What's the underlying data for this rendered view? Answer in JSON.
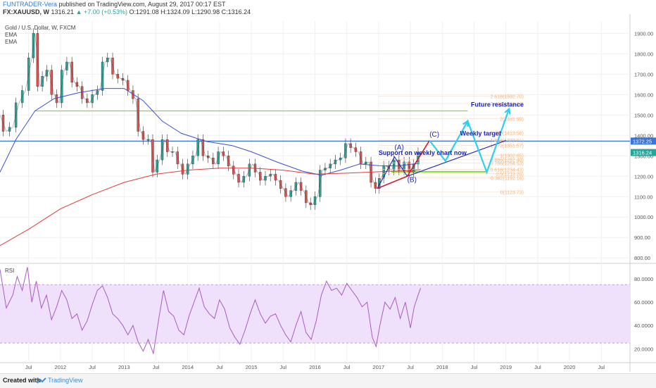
{
  "header": {
    "author": "FUNTRADER-Vera",
    "published": "published on TradingView.com, August 29, 2017 00:17 EST",
    "symbol": "FX:XAUUSD, W",
    "last": "1316.21",
    "change": "▲ +7.00 (+0.53%)",
    "ohlc": "O:1291.08 H:1324.09 L:1290.98 C:1316.24"
  },
  "indicators": {
    "title": "Gold / U.S. Dollar, W, FXCM",
    "ema1": "EMA",
    "ema2": "EMA",
    "rsi": "RSI"
  },
  "footer": {
    "created_with": "Created with",
    "brand": "TradingView"
  },
  "colors": {
    "up": "#26a69a",
    "down": "#e0524f",
    "ema_fast": "#3f4fd0",
    "ema_slow": "#e03c3c",
    "support": "#7fdc3c",
    "resistance": "#3a73d9",
    "arrows": "#2fd0ec",
    "rsi_line": "#a85bbf",
    "rsi_band": "#efe1fb",
    "fib_text": "#f2b27a"
  },
  "chart_data": [
    {
      "type": "line",
      "title": "Gold / U.S. Dollar, W, FXCM",
      "y_axis": {
        "ticks": [
          800,
          900,
          1000,
          1100,
          1200,
          1300,
          1400,
          1500,
          1600,
          1700,
          1800,
          1900
        ],
        "tick_labels": [
          "800.00",
          "900.00",
          "1000.00",
          "1100.00",
          "1200.00",
          "1300.00",
          "1400.00",
          "1500.00",
          "1600.00",
          "1700.00",
          "1800.00",
          "1900.00"
        ],
        "range": [
          780,
          1960
        ]
      },
      "x_axis": {
        "tick_labels": [
          "Jul",
          "2012",
          "Jul",
          "2013",
          "Jul",
          "2014",
          "Jul",
          "2015",
          "Jul",
          "2016",
          "Jul",
          "2017",
          "Jul",
          "2018",
          "Jul",
          "2019",
          "Jul",
          "2020",
          "Jul"
        ],
        "tick_dates": [
          2011.5,
          2012,
          2012.5,
          2013,
          2013.5,
          2014,
          2014.5,
          2015,
          2015.5,
          2016,
          2016.5,
          2017,
          2017.5,
          2018,
          2018.5,
          2019,
          2019.5,
          2020,
          2020.5
        ],
        "range": [
          2011.05,
          2020.95
        ]
      },
      "series": [
        {
          "name": "XAUUSD",
          "points": [
            [
              2011.05,
              1500
            ],
            [
              2011.15,
              1420
            ],
            [
              2011.25,
              1440
            ],
            [
              2011.35,
              1560
            ],
            [
              2011.45,
              1620
            ],
            [
              2011.55,
              1780
            ],
            [
              2011.6,
              1900
            ],
            [
              2011.68,
              1640
            ],
            [
              2011.75,
              1690
            ],
            [
              2011.82,
              1720
            ],
            [
              2011.9,
              1600
            ],
            [
              2011.98,
              1560
            ],
            [
              2012.06,
              1720
            ],
            [
              2012.14,
              1760
            ],
            [
              2012.22,
              1660
            ],
            [
              2012.3,
              1640
            ],
            [
              2012.38,
              1580
            ],
            [
              2012.46,
              1560
            ],
            [
              2012.54,
              1600
            ],
            [
              2012.62,
              1620
            ],
            [
              2012.7,
              1760
            ],
            [
              2012.78,
              1780
            ],
            [
              2012.86,
              1700
            ],
            [
              2012.94,
              1680
            ],
            [
              2013.02,
              1670
            ],
            [
              2013.1,
              1620
            ],
            [
              2013.18,
              1580
            ],
            [
              2013.26,
              1420
            ],
            [
              2013.34,
              1380
            ],
            [
              2013.42,
              1380
            ],
            [
              2013.48,
              1220
            ],
            [
              2013.56,
              1280
            ],
            [
              2013.64,
              1380
            ],
            [
              2013.72,
              1320
            ],
            [
              2013.8,
              1320
            ],
            [
              2013.88,
              1260
            ],
            [
              2013.96,
              1210
            ],
            [
              2014.04,
              1260
            ],
            [
              2014.12,
              1300
            ],
            [
              2014.2,
              1380
            ],
            [
              2014.28,
              1300
            ],
            [
              2014.36,
              1290
            ],
            [
              2014.44,
              1260
            ],
            [
              2014.52,
              1320
            ],
            [
              2014.6,
              1300
            ],
            [
              2014.68,
              1250
            ],
            [
              2014.76,
              1210
            ],
            [
              2014.84,
              1170
            ],
            [
              2014.92,
              1200
            ],
            [
              2015.02,
              1260
            ],
            [
              2015.1,
              1220
            ],
            [
              2015.18,
              1180
            ],
            [
              2015.26,
              1200
            ],
            [
              2015.34,
              1210
            ],
            [
              2015.42,
              1180
            ],
            [
              2015.5,
              1140
            ],
            [
              2015.58,
              1100
            ],
            [
              2015.66,
              1130
            ],
            [
              2015.74,
              1170
            ],
            [
              2015.82,
              1130
            ],
            [
              2015.9,
              1070
            ],
            [
              2015.96,
              1060
            ],
            [
              2016.04,
              1100
            ],
            [
              2016.12,
              1230
            ],
            [
              2016.2,
              1240
            ],
            [
              2016.28,
              1260
            ],
            [
              2016.36,
              1280
            ],
            [
              2016.44,
              1290
            ],
            [
              2016.52,
              1360
            ],
            [
              2016.6,
              1340
            ],
            [
              2016.68,
              1320
            ],
            [
              2016.76,
              1260
            ],
            [
              2016.84,
              1270
            ],
            [
              2016.92,
              1170
            ],
            [
              2016.98,
              1140
            ],
            [
              2017.04,
              1190
            ],
            [
              2017.12,
              1250
            ],
            [
              2017.2,
              1230
            ],
            [
              2017.28,
              1280
            ],
            [
              2017.36,
              1230
            ],
            [
              2017.44,
              1270
            ],
            [
              2017.52,
              1220
            ],
            [
              2017.58,
              1260
            ],
            [
              2017.66,
              1316
            ]
          ]
        },
        {
          "name": "EMA",
          "points": [
            [
              2011.05,
              1220
            ],
            [
              2011.3,
              1380
            ],
            [
              2011.6,
              1520
            ],
            [
              2011.9,
              1580
            ],
            [
              2012.3,
              1610
            ],
            [
              2012.7,
              1630
            ],
            [
              2013.0,
              1630
            ],
            [
              2013.3,
              1570
            ],
            [
              2013.6,
              1470
            ],
            [
              2013.9,
              1410
            ],
            [
              2014.3,
              1370
            ],
            [
              2014.7,
              1350
            ],
            [
              2015.0,
              1320
            ],
            [
              2015.4,
              1270
            ],
            [
              2015.8,
              1225
            ],
            [
              2016.1,
              1205
            ],
            [
              2016.4,
              1230
            ],
            [
              2016.7,
              1260
            ],
            [
              2017.0,
              1252
            ],
            [
              2017.3,
              1250
            ],
            [
              2017.6,
              1262
            ]
          ]
        },
        {
          "name": "EMA",
          "points": [
            [
              2011.05,
              860
            ],
            [
              2011.5,
              940
            ],
            [
              2012.0,
              1040
            ],
            [
              2012.5,
              1110
            ],
            [
              2013.0,
              1170
            ],
            [
              2013.5,
              1210
            ],
            [
              2014.0,
              1230
            ],
            [
              2014.5,
              1240
            ],
            [
              2015.0,
              1240
            ],
            [
              2015.5,
              1230
            ],
            [
              2016.0,
              1210
            ],
            [
              2016.5,
              1215
            ],
            [
              2017.0,
              1222
            ],
            [
              2017.5,
              1228
            ],
            [
              2017.66,
              1232
            ]
          ]
        }
      ],
      "horizontal_levels": [
        {
          "name": "support",
          "y": 1520,
          "x_start": 2011.6,
          "x_end": 2018.4
        },
        {
          "name": "resistance",
          "y": 1372.25,
          "x_start": 2011.05,
          "x_end": 2020.95
        },
        {
          "name": "support-weekly",
          "y": 1222,
          "x_start": 2017.2,
          "x_end": 2018.7
        }
      ],
      "price_badges": [
        "1372.25",
        "1316.24"
      ],
      "fib_labels": [
        {
          "text": "2.618(1592.70)",
          "y": 1592.7
        },
        {
          "text": "2.414(1556.16)",
          "y": 1556.2
        },
        {
          "text": "2(1481.99)",
          "y": 1482
        },
        {
          "text": "1.618(1413.58)",
          "y": 1413.6
        },
        {
          "text": "1.414(1377.01)",
          "y": 1377
        },
        {
          "text": "1.272(1351.57)",
          "y": 1351.6
        },
        {
          "text": "1(1302.85)",
          "y": 1302.9
        },
        {
          "text": "0.886(1282.40)",
          "y": 1282.4
        },
        {
          "text": "0.786(1264.53)",
          "y": 1264.5
        },
        {
          "text": "0.618(1234.43)",
          "y": 1234.4
        },
        {
          "text": "0.5(1213.28)",
          "y": 1213.3
        },
        {
          "text": "0.382(1192.16)",
          "y": 1192.2
        },
        {
          "text": "0(1123.73)",
          "y": 1123.7
        }
      ],
      "annotations": [
        {
          "text": "Future resistance",
          "x": 2018.45,
          "y": 1540
        },
        {
          "text": "Weekly target",
          "x": 2018.28,
          "y": 1400
        },
        {
          "text": "(C)",
          "x": 2017.8,
          "y": 1395
        },
        {
          "text": "(A)",
          "x": 2017.25,
          "y": 1330
        },
        {
          "text": "Support on weekly chart now",
          "x": 2017.0,
          "y": 1305
        },
        {
          "text": "(B)",
          "x": 2017.45,
          "y": 1172
        }
      ]
    },
    {
      "type": "line",
      "title": "RSI",
      "y_axis": {
        "ticks": [
          20,
          40,
          60,
          80
        ],
        "tick_labels": [
          "20.0000",
          "40.0000",
          "60.0000",
          "80.0000"
        ],
        "range": [
          10,
          92
        ]
      },
      "band": [
        25,
        75
      ],
      "series": [
        {
          "name": "RSI",
          "points": [
            [
              2011.05,
              88
            ],
            [
              2011.15,
              55
            ],
            [
              2011.25,
              66
            ],
            [
              2011.32,
              82
            ],
            [
              2011.4,
              70
            ],
            [
              2011.48,
              90
            ],
            [
              2011.55,
              60
            ],
            [
              2011.62,
              78
            ],
            [
              2011.7,
              55
            ],
            [
              2011.78,
              66
            ],
            [
              2011.86,
              45
            ],
            [
              2011.94,
              56
            ],
            [
              2012.02,
              70
            ],
            [
              2012.1,
              62
            ],
            [
              2012.18,
              46
            ],
            [
              2012.26,
              50
            ],
            [
              2012.34,
              36
            ],
            [
              2012.42,
              44
            ],
            [
              2012.5,
              58
            ],
            [
              2012.58,
              70
            ],
            [
              2012.66,
              74
            ],
            [
              2012.74,
              64
            ],
            [
              2012.82,
              50
            ],
            [
              2012.9,
              46
            ],
            [
              2012.98,
              40
            ],
            [
              2013.06,
              32
            ],
            [
              2013.14,
              40
            ],
            [
              2013.22,
              26
            ],
            [
              2013.3,
              18
            ],
            [
              2013.38,
              28
            ],
            [
              2013.46,
              16
            ],
            [
              2013.54,
              44
            ],
            [
              2013.62,
              70
            ],
            [
              2013.7,
              52
            ],
            [
              2013.78,
              48
            ],
            [
              2013.86,
              36
            ],
            [
              2013.94,
              32
            ],
            [
              2014.02,
              48
            ],
            [
              2014.1,
              60
            ],
            [
              2014.18,
              72
            ],
            [
              2014.26,
              56
            ],
            [
              2014.34,
              50
            ],
            [
              2014.42,
              46
            ],
            [
              2014.5,
              62
            ],
            [
              2014.58,
              54
            ],
            [
              2014.66,
              38
            ],
            [
              2014.74,
              30
            ],
            [
              2014.82,
              24
            ],
            [
              2014.9,
              36
            ],
            [
              2014.98,
              50
            ],
            [
              2015.06,
              62
            ],
            [
              2015.14,
              50
            ],
            [
              2015.22,
              42
            ],
            [
              2015.3,
              48
            ],
            [
              2015.38,
              50
            ],
            [
              2015.46,
              40
            ],
            [
              2015.54,
              32
            ],
            [
              2015.62,
              26
            ],
            [
              2015.7,
              40
            ],
            [
              2015.78,
              52
            ],
            [
              2015.86,
              34
            ],
            [
              2015.94,
              28
            ],
            [
              2016.02,
              44
            ],
            [
              2016.1,
              66
            ],
            [
              2016.18,
              78
            ],
            [
              2016.26,
              70
            ],
            [
              2016.34,
              72
            ],
            [
              2016.42,
              66
            ],
            [
              2016.5,
              76
            ],
            [
              2016.58,
              70
            ],
            [
              2016.66,
              64
            ],
            [
              2016.74,
              56
            ],
            [
              2016.82,
              60
            ],
            [
              2016.9,
              30
            ],
            [
              2016.96,
              22
            ],
            [
              2017.02,
              40
            ],
            [
              2017.1,
              60
            ],
            [
              2017.18,
              54
            ],
            [
              2017.26,
              64
            ],
            [
              2017.34,
              46
            ],
            [
              2017.42,
              60
            ],
            [
              2017.5,
              38
            ],
            [
              2017.56,
              56
            ],
            [
              2017.62,
              66
            ],
            [
              2017.66,
              72
            ]
          ]
        }
      ]
    }
  ]
}
